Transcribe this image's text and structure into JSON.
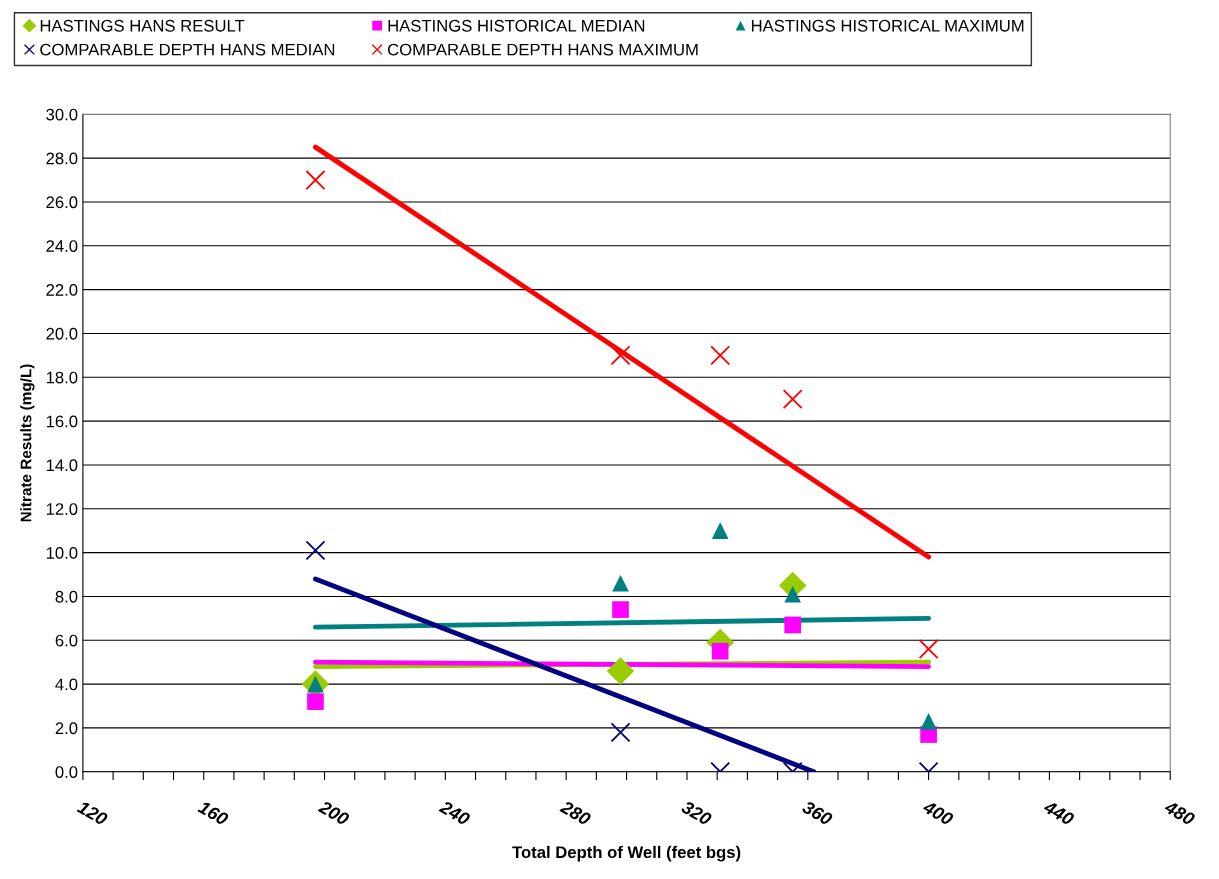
{
  "chart_data": {
    "type": "scatter",
    "xlabel": "Total Depth of Well (feet bgs)",
    "ylabel": "Nitrate Results (mg/L)",
    "x": [
      197,
      298,
      331,
      355,
      400
    ],
    "series": [
      {
        "name": "HASTINGS HANS RESULT",
        "color": "#99cc00",
        "marker": "diamond",
        "values": [
          4.0,
          4.6,
          5.9,
          8.5,
          null
        ]
      },
      {
        "name": "HASTINGS HISTORICAL MEDIAN",
        "color": "#ff00ff",
        "marker": "square",
        "values": [
          3.2,
          7.4,
          5.5,
          6.7,
          1.7
        ]
      },
      {
        "name": "HASTINGS HISTORICAL MAXIMUM",
        "color": "#008080",
        "marker": "triangle",
        "values": [
          4.0,
          8.6,
          11.0,
          8.1,
          2.3
        ]
      },
      {
        "name": "COMPARABLE DEPTH HANS MEDIAN",
        "color": "#000080",
        "marker": "cross",
        "values": [
          10.1,
          1.8,
          0.0,
          0.0,
          0.0
        ]
      },
      {
        "name": "COMPARABLE DEPTH HANS MAXIMUM",
        "color": "#ff0000",
        "marker": "cross",
        "values": [
          27.0,
          19.0,
          19.0,
          17.0,
          5.6
        ]
      },
      {
        "type": "line",
        "color": "#99cc00",
        "x": [
          197,
          400
        ],
        "values": [
          4.8,
          5.0
        ]
      },
      {
        "type": "line",
        "color": "#ff00ff",
        "x": [
          197,
          400
        ],
        "values": [
          5.0,
          4.8
        ]
      },
      {
        "type": "line",
        "color": "#008080",
        "x": [
          197,
          400
        ],
        "values": [
          6.6,
          7.0
        ]
      },
      {
        "type": "line",
        "color": "#000080",
        "x": [
          197,
          362
        ],
        "values": [
          8.8,
          0.0
        ]
      },
      {
        "type": "line",
        "color": "#ff0000",
        "x": [
          197,
          400
        ],
        "values": [
          28.5,
          9.8
        ]
      }
    ],
    "xlim": [
      120,
      480
    ],
    "xticks": [
      120,
      {
        "value": 130,
        "label": null
      },
      {
        "value": 140,
        "label": null
      },
      {
        "value": 150,
        "label": null
      },
      160,
      {
        "value": 170,
        "label": null
      },
      {
        "value": 180,
        "label": null
      },
      {
        "value": 190,
        "label": null
      },
      200,
      {
        "value": 210,
        "label": null
      },
      {
        "value": 220,
        "label": null
      },
      {
        "value": 230,
        "label": null
      },
      240,
      {
        "value": 250,
        "label": null
      },
      {
        "value": 260,
        "label": null
      },
      {
        "value": 270,
        "label": null
      },
      280,
      {
        "value": 290,
        "label": null
      },
      {
        "value": 300,
        "label": null
      },
      {
        "value": 310,
        "label": null
      },
      320,
      {
        "value": 330,
        "label": null
      },
      {
        "value": 340,
        "label": null
      },
      {
        "value": 350,
        "label": null
      },
      360,
      {
        "value": 370,
        "label": null
      },
      {
        "value": 380,
        "label": null
      },
      {
        "value": 390,
        "label": null
      },
      400,
      {
        "value": 410,
        "label": null
      },
      {
        "value": 420,
        "label": null
      },
      {
        "value": 430,
        "label": null
      },
      440,
      {
        "value": 450,
        "label": null
      },
      {
        "value": 460,
        "label": null
      },
      {
        "value": 470,
        "label": null
      },
      480
    ],
    "ylim": [
      0,
      30
    ],
    "yticks": [
      {
        "value": 0,
        "label": "0.0"
      },
      {
        "value": 2,
        "label": "2.0"
      },
      {
        "value": 4,
        "label": "4.0"
      },
      {
        "value": 6,
        "label": "6.0"
      },
      {
        "value": 8,
        "label": "8.0"
      },
      {
        "value": 10,
        "label": "10.0"
      },
      {
        "value": 12,
        "label": "12.0"
      },
      {
        "value": 14,
        "label": "14.0"
      },
      {
        "value": 16,
        "label": "16.0"
      },
      {
        "value": 18,
        "label": "18.0"
      },
      {
        "value": 20,
        "label": "20.0"
      },
      {
        "value": 22,
        "label": "22.0"
      },
      {
        "value": 24,
        "label": "24.0"
      },
      {
        "value": 26,
        "label": "26.0"
      },
      {
        "value": 28,
        "label": "28.0"
      },
      {
        "value": 30,
        "label": "30.0"
      }
    ],
    "grid": "y",
    "legend": "top"
  }
}
